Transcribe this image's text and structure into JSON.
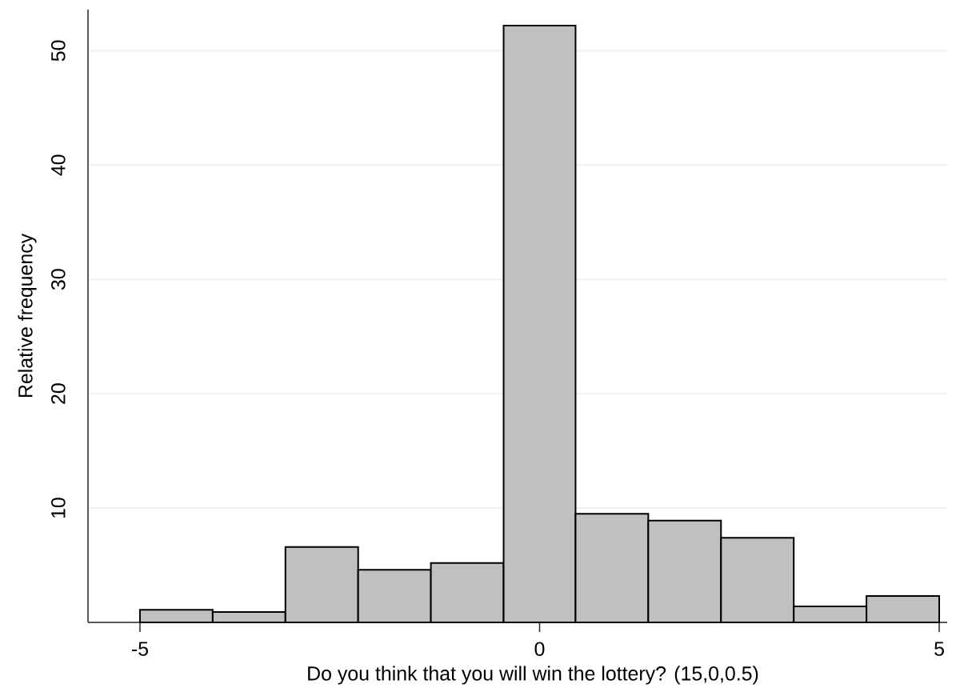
{
  "chart_data": {
    "type": "histogram",
    "xlabel": "Do you think that you will win the lottery? (15,0,0.5)",
    "ylabel": "Relative frequency",
    "bins": [
      -5,
      -4.09,
      -3.18,
      -2.27,
      -1.36,
      -0.45,
      0.45,
      1.36,
      2.27,
      3.18,
      4.09,
      5
    ],
    "values": [
      1.1,
      0.9,
      6.6,
      4.6,
      5.2,
      52.2,
      9.5,
      8.9,
      7.4,
      1.4,
      2.3
    ],
    "color": "#c0c0c0",
    "xlim": [
      -5.65,
      5.1
    ],
    "ylim": [
      0,
      53.6
    ],
    "xticks": [
      -5,
      0,
      5
    ],
    "yticks": [
      10,
      20,
      30,
      40,
      50
    ],
    "grid": "y"
  }
}
